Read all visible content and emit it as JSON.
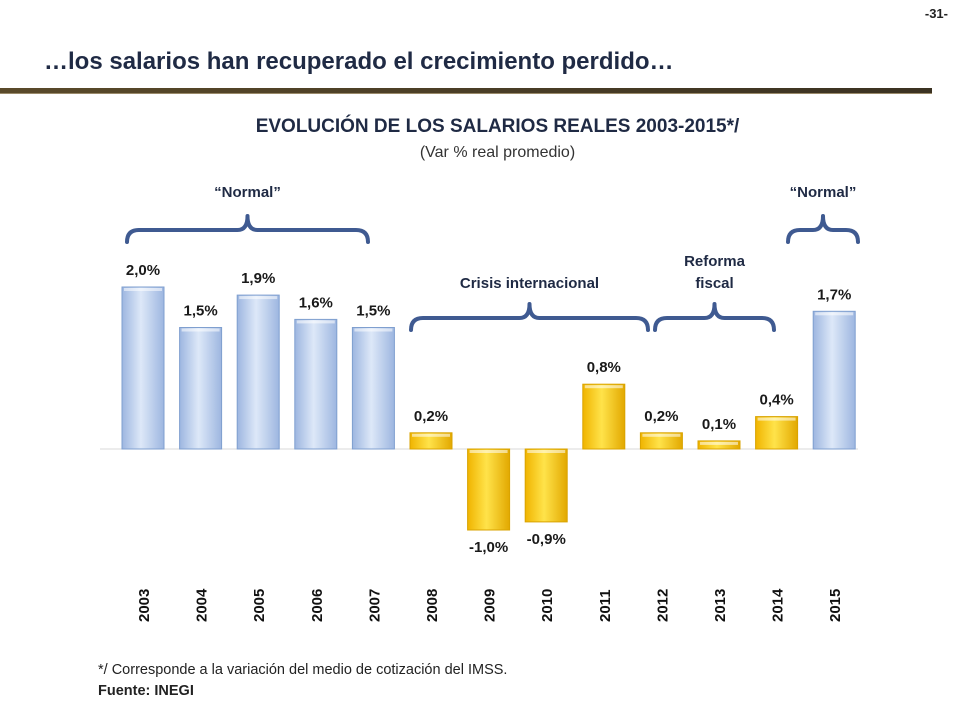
{
  "page": {
    "number": "-31-",
    "title": "…los salarios han recuperado el crecimiento perdido…"
  },
  "chart_data": {
    "type": "bar",
    "title": "EVOLUCIÓN DE LOS SALARIOS REALES 2003-2015*/",
    "subtitle": "(Var % real promedio)",
    "categories": [
      "2003",
      "2004",
      "2005",
      "2006",
      "2007",
      "2008",
      "2009",
      "2010",
      "2011",
      "2012",
      "2013",
      "2014",
      "2015"
    ],
    "values": [
      2.0,
      1.5,
      1.9,
      1.6,
      1.5,
      0.2,
      -1.0,
      -0.9,
      0.8,
      0.2,
      0.1,
      0.4,
      1.7
    ],
    "data_labels": [
      "2,0%",
      "1,5%",
      "1,9%",
      "1,6%",
      "1,5%",
      "0,2%",
      "-1,0%",
      "-0,9%",
      "0,8%",
      "0,2%",
      "0,1%",
      "0,4%",
      "1,7%"
    ],
    "series_colors": [
      "blue",
      "blue",
      "blue",
      "blue",
      "blue",
      "gold",
      "gold",
      "gold",
      "gold",
      "gold",
      "gold",
      "gold",
      "blue"
    ],
    "colors": {
      "blue": "#c2d4ef",
      "blue_dark": "#7f9fcf",
      "gold": "#f6c600",
      "gold_dark": "#d9a300",
      "bracket": "#3f5a91"
    },
    "annotations": [
      {
        "text": "“Normal”",
        "from": "2003",
        "to": "2007"
      },
      {
        "text": "Crisis internacional",
        "from": "2008",
        "to": "2012"
      },
      {
        "text": "Reforma fiscal",
        "from": "2012",
        "to": "2014"
      },
      {
        "text": "“Normal”",
        "from": "2015",
        "to": "2015"
      }
    ],
    "xlabel": "",
    "ylabel": "",
    "ylim": [
      -1.0,
      2.0
    ],
    "grid": false,
    "legend": "none"
  },
  "footer": {
    "footnote": "*/ Corresponde a la variación del medio de cotización del IMSS.",
    "source": "Fuente: INEGI"
  }
}
